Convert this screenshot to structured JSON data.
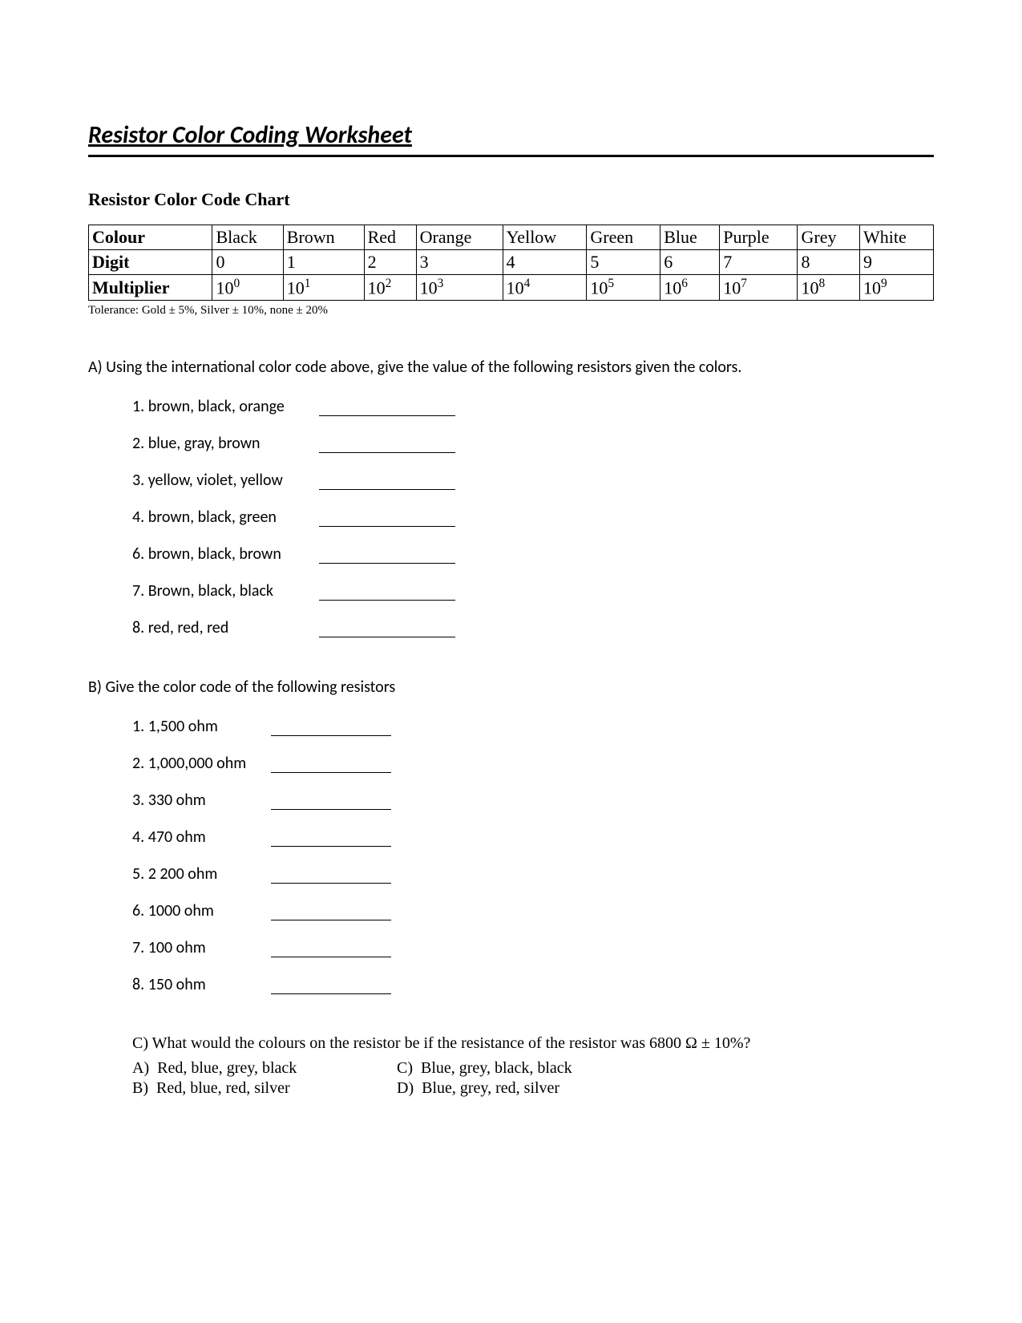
{
  "title": "Resistor Color Coding Worksheet",
  "chart_heading": "Resistor Color Code Chart",
  "table": {
    "row_labels": [
      "Colour",
      "Digit",
      "Multiplier"
    ],
    "columns": [
      "Black",
      "Brown",
      "Red",
      "Orange",
      "Yellow",
      "Green",
      "Blue",
      "Purple",
      "Grey",
      "White"
    ],
    "digits": [
      "0",
      "1",
      "2",
      "3",
      "4",
      "5",
      "6",
      "7",
      "8",
      "9"
    ],
    "mult_base": "10",
    "mult_exp": [
      "0",
      "1",
      "2",
      "3",
      "4",
      "5",
      "6",
      "7",
      "8",
      "9"
    ]
  },
  "tolerance_note": "Tolerance: Gold ± 5%, Silver ± 10%, none ± 20%",
  "sectionA": {
    "prompt": "A) Using the international color code above, give the value of the following resistors given the colors.",
    "items": [
      {
        "n": "1.",
        "t": "brown, black, orange"
      },
      {
        "n": "2.",
        "t": "blue, gray, brown"
      },
      {
        "n": "3.",
        "t": "yellow, violet, yellow"
      },
      {
        "n": "4.",
        "t": "brown, black, green"
      },
      {
        "n": "6.",
        "t": "brown, black, brown"
      },
      {
        "n": "7.",
        "t": "Brown, black, black"
      },
      {
        "n": "8.",
        "t": "red, red, red"
      }
    ]
  },
  "sectionB": {
    "prompt": "B) Give the color code of the following resistors",
    "items": [
      {
        "n": "1.",
        "t": "1,500 ohm"
      },
      {
        "n": "2.",
        "t": "1,000,000 ohm"
      },
      {
        "n": "3.",
        "t": "330 ohm"
      },
      {
        "n": "4.",
        "t": "470 ohm"
      },
      {
        "n": "5.",
        "t": "2 200 ohm"
      },
      {
        "n": "6.",
        "t": "1000 ohm"
      },
      {
        "n": "7.",
        "t": "100 ohm"
      },
      {
        "n": "8.",
        "t": "150 ohm"
      }
    ]
  },
  "sectionC": {
    "prompt": "C) What would the colours on the resistor be if the resistance of the resistor was 6800 Ω ± 10%?",
    "choices": [
      {
        "k": "A)",
        "t": "Red, blue, grey, black"
      },
      {
        "k": "B)",
        "t": "Red, blue, red, silver"
      },
      {
        "k": "C)",
        "t": "Blue, grey, black, black"
      },
      {
        "k": "D)",
        "t": "Blue, grey, red, silver"
      }
    ]
  }
}
